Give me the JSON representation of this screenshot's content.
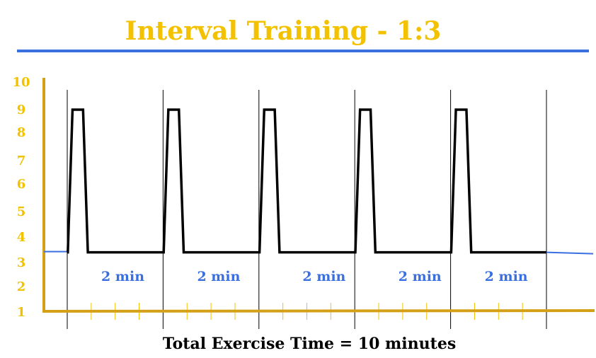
{
  "chart_data": {
    "type": "line",
    "title": "Interval Training - 1:3",
    "y_ticks": [
      "10",
      "9",
      "8",
      "7",
      "6",
      "5",
      "4",
      "3",
      "2",
      "1"
    ],
    "ylim": [
      1,
      10
    ],
    "xlim_minutes": [
      0,
      10
    ],
    "intensity_profile": {
      "baseline": 3.4,
      "peak": 9,
      "intervals": 5,
      "interval_minutes": 2,
      "work_to_rest": "1:3"
    },
    "segment_labels": [
      "2  min",
      "2  min",
      "2  min",
      "2  min",
      "2  min"
    ],
    "total_label": "Total Exercise Time =   10 minutes",
    "colors": {
      "title": "#f2c200",
      "axis": "#d4a017",
      "ticks": "#f2c200",
      "line": "#000000",
      "lead": "#3a6fe0",
      "rule": "#3a6fe0",
      "segment_text": "#3a6fe0"
    }
  }
}
